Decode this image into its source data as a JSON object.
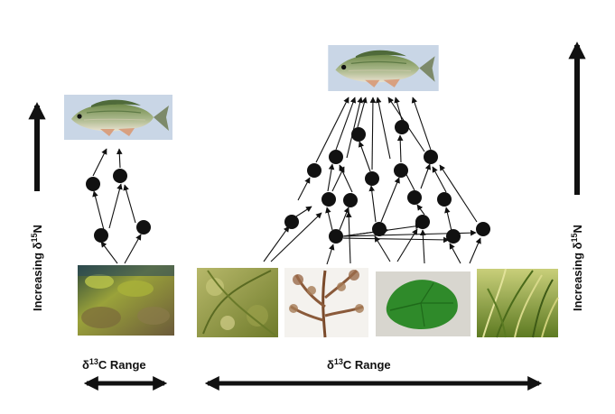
{
  "axis_labels": {
    "left": {
      "text": "Increasing δ",
      "sup": "15",
      "tail": "N"
    },
    "right": {
      "text": "Increasing δ",
      "sup": "15",
      "tail": "N"
    }
  },
  "range_labels": {
    "left": {
      "delta": "δ",
      "sup": "13",
      "tail": "C Range"
    },
    "right": {
      "delta": "δ",
      "sup": "13",
      "tail": "C Range"
    }
  },
  "images": {
    "fish_left": "fish",
    "fish_right": "fish",
    "producer_left": "algae-covered rock",
    "producers_right": [
      "green algae",
      "brown seaweed",
      "green leaf",
      "seagrass"
    ]
  },
  "colors": {
    "node": "#111111",
    "arrow": "#111111",
    "fish_bg": "#c9d6e6",
    "algae": "#8a9a34",
    "brown_weed": "#8a5a3a",
    "leaf": "#2f8a2a",
    "seagrass": "#6f8f2a"
  }
}
